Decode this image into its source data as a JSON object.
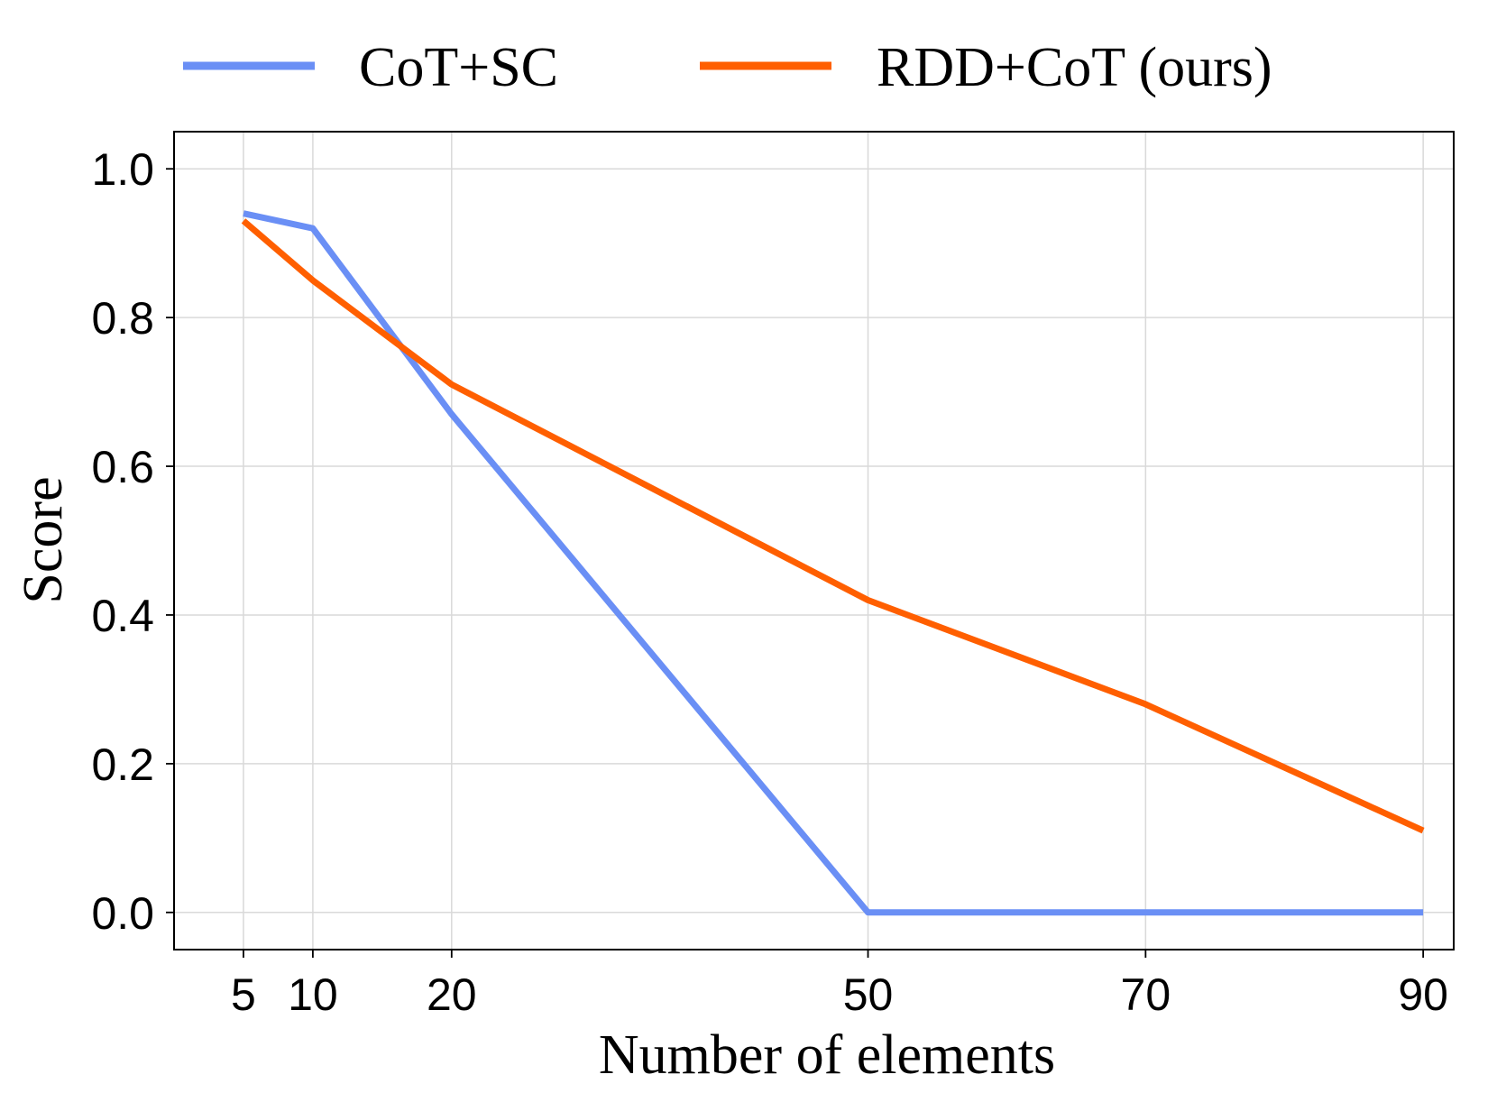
{
  "chart_data": {
    "type": "line",
    "title": "",
    "xlabel": "Number of elements",
    "ylabel": "Score",
    "x": [
      5,
      10,
      20,
      50,
      70,
      90
    ],
    "xticks": [
      "5",
      "10",
      "20",
      "50",
      "70",
      "90"
    ],
    "xlim": [
      0,
      92.2
    ],
    "yticks": [
      "0.0",
      "0.2",
      "0.4",
      "0.6",
      "0.8",
      "1.0"
    ],
    "ytick_values": [
      0.0,
      0.2,
      0.4,
      0.6,
      0.8,
      1.0
    ],
    "ylim": [
      -0.05,
      1.05
    ],
    "grid": true,
    "legend_position": "top-center",
    "series": [
      {
        "name": "CoT+SC",
        "color": "#6a8ff5",
        "values": [
          0.94,
          0.92,
          0.67,
          0.0,
          0.0,
          0.0
        ]
      },
      {
        "name": "RDD+CoT (ours)",
        "color": "#ff5f00",
        "values": [
          0.93,
          0.85,
          0.71,
          0.42,
          0.28,
          0.11
        ]
      }
    ]
  }
}
